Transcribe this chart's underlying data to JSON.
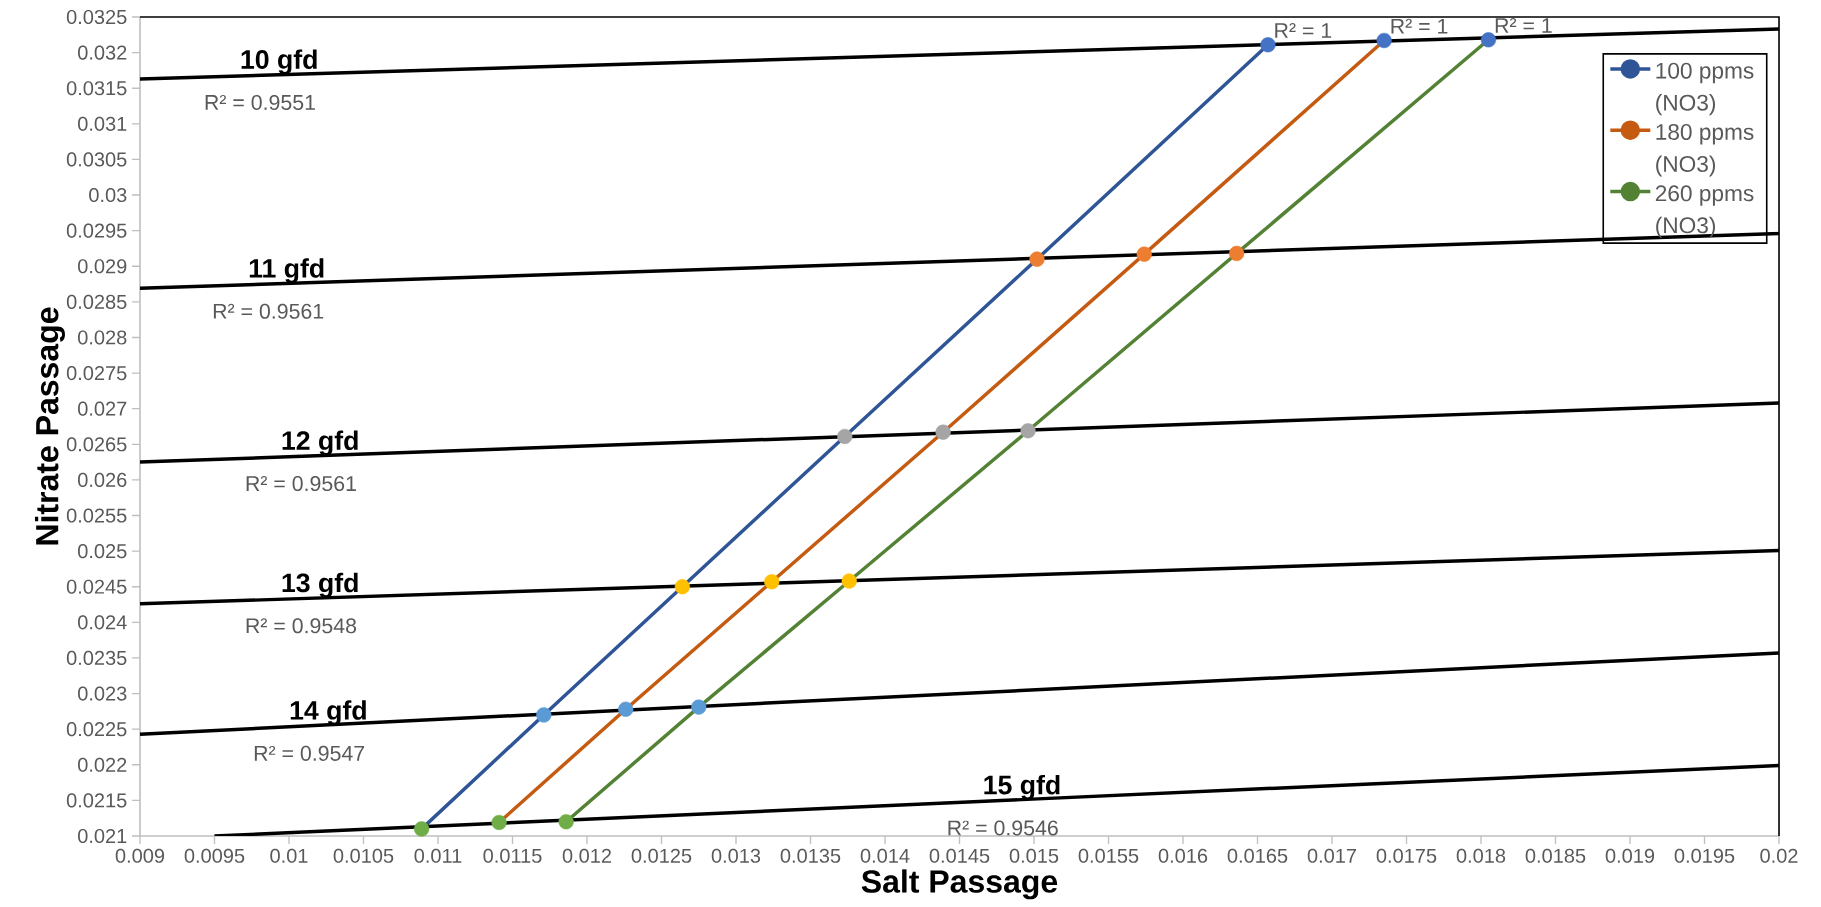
{
  "chart_data": {
    "type": "line",
    "xlabel": "Salt Passage",
    "ylabel": "Nitrate Passage",
    "xlim": [
      0.009,
      0.02
    ],
    "ylim": [
      0.021,
      0.0325
    ],
    "xticks": [
      0.009,
      0.0095,
      0.01,
      0.0105,
      0.011,
      0.0115,
      0.012,
      0.0125,
      0.013,
      0.0135,
      0.014,
      0.0145,
      0.015,
      0.0155,
      0.016,
      0.0165,
      0.017,
      0.0175,
      0.018,
      0.0185,
      0.019,
      0.0195,
      0.02
    ],
    "yticks": [
      0.021,
      0.0215,
      0.022,
      0.0225,
      0.023,
      0.0235,
      0.024,
      0.0245,
      0.025,
      0.0255,
      0.026,
      0.0265,
      0.027,
      0.0275,
      0.028,
      0.0285,
      0.029,
      0.0295,
      0.03,
      0.0305,
      0.031,
      0.0315,
      0.032,
      0.0325
    ],
    "marker": "circle",
    "legend": "top right",
    "series": [
      {
        "name": "100 ppms (NO3)",
        "color": "#2f5597",
        "x": [
          0.01089,
          0.01171,
          0.01264,
          0.01373,
          0.01502,
          0.01657
        ],
        "values": [
          0.0211,
          0.0227,
          0.0245,
          0.02661,
          0.0291,
          0.03211
        ],
        "colors": [
          "#70ad47",
          "#5b9bd5",
          "#ffc000",
          "#a5a5a5",
          "#ed7d31",
          "#4472c4"
        ]
      },
      {
        "name": "180 ppms (NO3)",
        "color": "#c55a11",
        "x": [
          0.01141,
          0.01226,
          0.01324,
          0.01439,
          0.01574,
          0.01735
        ],
        "values": [
          0.02119,
          0.02278,
          0.02457,
          0.02667,
          0.02917,
          0.03217
        ],
        "colors": [
          "#70ad47",
          "#5b9bd5",
          "#ffc000",
          "#a5a5a5",
          "#ed7d31",
          "#4472c4"
        ]
      },
      {
        "name": "260 ppms (NO3)",
        "color": "#548235",
        "x": [
          0.01186,
          0.01275,
          0.01376,
          0.01496,
          0.01636,
          0.01805
        ],
        "values": [
          0.0212,
          0.02281,
          0.02458,
          0.02669,
          0.02918,
          0.03218
        ],
        "colors": [
          "#70ad47",
          "#5b9bd5",
          "#ffc000",
          "#a5a5a5",
          "#ed7d31",
          "#4472c4"
        ]
      },
      {
        "name": "10 gfd",
        "type": "line",
        "marker": "none",
        "color": "#000000",
        "x": [
          0.009,
          0.02
        ],
        "values": [
          0.03163,
          0.03233
        ]
      },
      {
        "name": "11 gfd",
        "type": "line",
        "marker": "none",
        "color": "#000000",
        "x": [
          0.009,
          0.02
        ],
        "values": [
          0.02869,
          0.02946
        ]
      },
      {
        "name": "12 gfd",
        "type": "line",
        "marker": "none",
        "color": "#000000",
        "x": [
          0.009,
          0.02
        ],
        "values": [
          0.02625,
          0.02708
        ]
      },
      {
        "name": "13 gfd",
        "type": "line",
        "marker": "none",
        "color": "#000000",
        "x": [
          0.009,
          0.02
        ],
        "values": [
          0.02426,
          0.02501
        ]
      },
      {
        "name": "14 gfd",
        "type": "line",
        "marker": "none",
        "color": "#000000",
        "x": [
          0.009,
          0.02
        ],
        "values": [
          0.02243,
          0.02357
        ]
      },
      {
        "name": "15 gfd",
        "type": "line",
        "marker": "none",
        "color": "#000000",
        "x": [
          0.0095,
          0.02
        ],
        "values": [
          0.021,
          0.02199
        ]
      }
    ],
    "annotations": [
      "R² = 0.9551",
      "R² = 0.9561",
      "R² = 0.9561",
      "R² = 0.9548",
      "R² = 0.9547",
      "R² = 0.9546",
      "R² = 1",
      "R² = 1",
      "R² = 1"
    ]
  }
}
